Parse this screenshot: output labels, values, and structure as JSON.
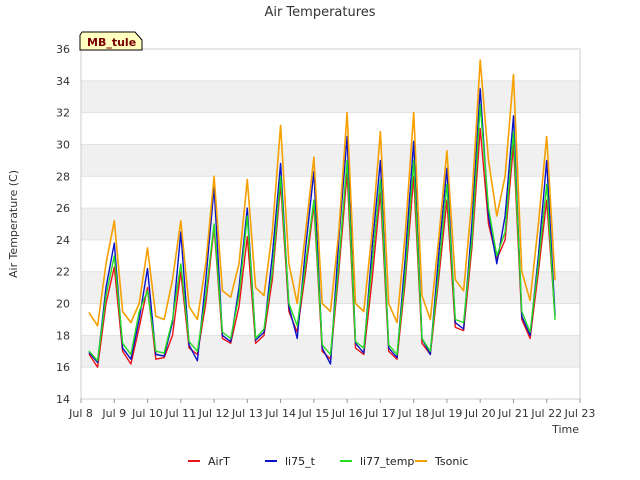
{
  "chart_data": {
    "type": "line",
    "title": "Air Temperatures",
    "xlabel": "Time",
    "ylabel": "Air Temperature (C)",
    "site_label": "MB_tule",
    "xlim": [
      8,
      23
    ],
    "ylim": [
      14,
      36
    ],
    "xticks": [
      8,
      9,
      10,
      11,
      12,
      13,
      14,
      15,
      16,
      17,
      18,
      19,
      20,
      21,
      22,
      23
    ],
    "xtick_labels": [
      "Jul 8",
      "Jul 9",
      "Jul 10",
      "Jul 11",
      "Jul 12",
      "Jul 13",
      "Jul 14",
      "Jul 15",
      "Jul 16",
      "Jul 17",
      "Jul 18",
      "Jul 19",
      "Jul 20",
      "Jul 21",
      "Jul 22",
      "Jul 23"
    ],
    "yticks": [
      14,
      16,
      18,
      20,
      22,
      24,
      26,
      28,
      30,
      32,
      34,
      36
    ],
    "ytick_labels": [
      "14",
      "16",
      "18",
      "20",
      "22",
      "24",
      "26",
      "28",
      "30",
      "32",
      "34",
      "36"
    ],
    "grid": true,
    "banded_background": true,
    "legend_position": "bottom",
    "x": [
      8.25,
      8.5,
      8.75,
      9.0,
      9.25,
      9.5,
      9.75,
      10.0,
      10.25,
      10.5,
      10.75,
      11.0,
      11.25,
      11.5,
      11.75,
      12.0,
      12.25,
      12.5,
      12.75,
      13.0,
      13.25,
      13.5,
      13.75,
      14.0,
      14.25,
      14.5,
      14.75,
      15.0,
      15.25,
      15.5,
      15.75,
      16.0,
      16.25,
      16.5,
      16.75,
      17.0,
      17.25,
      17.5,
      17.75,
      18.0,
      18.25,
      18.5,
      18.75,
      19.0,
      19.25,
      19.5,
      19.75,
      20.0,
      20.25,
      20.5,
      20.75,
      21.0,
      21.25,
      21.5,
      21.75,
      22.0,
      22.25
    ],
    "series": [
      {
        "name": "AirT",
        "color": "#e8121a",
        "width": 1.4,
        "values": [
          16.8,
          16.0,
          20.0,
          22.3,
          17.0,
          16.2,
          18.5,
          21.0,
          16.5,
          16.6,
          18.0,
          22.0,
          17.2,
          16.8,
          20.0,
          24.8,
          17.8,
          17.5,
          19.8,
          24.2,
          17.5,
          18.0,
          21.5,
          27.5,
          19.5,
          18.2,
          22.0,
          26.2,
          17.0,
          16.5,
          22.0,
          28.2,
          17.2,
          16.8,
          21.5,
          27.0,
          17.0,
          16.5,
          21.5,
          28.0,
          17.5,
          16.8,
          21.5,
          26.5,
          18.5,
          18.3,
          23.5,
          31.0,
          25.0,
          22.8,
          24.0,
          30.0,
          19.0,
          17.8,
          22.0,
          26.5,
          19.2
        ]
      },
      {
        "name": "li75_t",
        "color": "#0a12c8",
        "width": 1.4,
        "values": [
          16.9,
          16.3,
          21.0,
          23.8,
          17.2,
          16.5,
          19.0,
          22.2,
          16.8,
          16.7,
          18.8,
          24.5,
          17.4,
          16.4,
          21.5,
          27.3,
          18.0,
          17.6,
          21.0,
          26.0,
          17.7,
          18.2,
          23.0,
          28.8,
          19.8,
          17.8,
          23.5,
          28.3,
          17.2,
          16.2,
          24.0,
          30.5,
          17.5,
          16.9,
          23.5,
          29.0,
          17.2,
          16.6,
          23.0,
          30.2,
          17.8,
          16.8,
          23.0,
          28.5,
          18.8,
          18.4,
          25.0,
          33.5,
          25.5,
          22.5,
          25.5,
          31.8,
          19.2,
          18.0,
          23.0,
          29.0,
          19.3
        ]
      },
      {
        "name": "li77_temp",
        "color": "#22dd22",
        "width": 1.4,
        "values": [
          17.0,
          16.4,
          20.5,
          23.0,
          17.5,
          16.8,
          19.5,
          20.8,
          17.0,
          16.9,
          19.0,
          22.5,
          17.6,
          17.0,
          20.5,
          25.0,
          18.2,
          17.8,
          20.5,
          25.5,
          17.8,
          18.4,
          22.0,
          28.0,
          20.0,
          18.6,
          22.5,
          26.5,
          17.4,
          16.8,
          22.5,
          29.0,
          17.6,
          17.2,
          22.5,
          27.8,
          17.4,
          16.8,
          22.0,
          29.0,
          17.8,
          17.0,
          22.0,
          27.5,
          19.0,
          18.8,
          24.0,
          32.5,
          26.0,
          23.0,
          24.5,
          30.8,
          19.5,
          18.2,
          22.5,
          27.5,
          19.0
        ]
      },
      {
        "name": "Tsonic",
        "color": "#f5a000",
        "width": 1.6,
        "values": [
          19.4,
          18.6,
          22.5,
          25.2,
          19.5,
          18.8,
          20.0,
          23.5,
          19.2,
          19.0,
          21.5,
          25.2,
          19.8,
          19.0,
          22.5,
          28.0,
          20.8,
          20.4,
          22.5,
          27.8,
          21.0,
          20.5,
          24.5,
          31.2,
          22.5,
          20.0,
          24.5,
          29.2,
          20.0,
          19.5,
          24.5,
          32.0,
          20.0,
          19.5,
          24.5,
          30.8,
          20.0,
          18.8,
          24.5,
          32.0,
          20.5,
          19.0,
          24.0,
          29.6,
          21.5,
          20.8,
          26.5,
          35.3,
          29.0,
          25.5,
          28.0,
          34.4,
          22.0,
          20.2,
          25.0,
          30.5,
          21.5
        ]
      }
    ]
  }
}
